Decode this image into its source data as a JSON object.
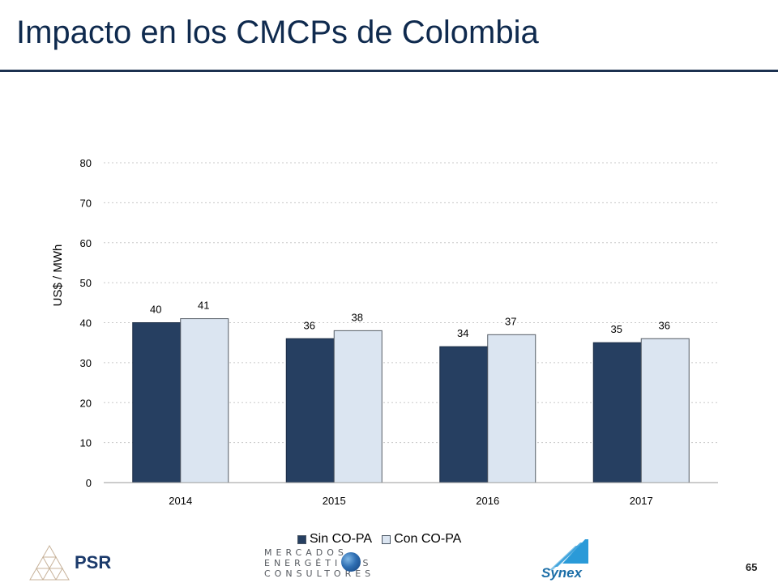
{
  "slide": {
    "title": "Impacto en los CMCPs de Colombia",
    "page_number": "65"
  },
  "chart_data": {
    "type": "bar",
    "title": "",
    "xlabel": "",
    "ylabel": "US$ / MWh",
    "ylim": [
      0,
      80
    ],
    "yticks": [
      0,
      10,
      20,
      30,
      40,
      50,
      60,
      70,
      80
    ],
    "grid": true,
    "legend_position": "bottom",
    "categories": [
      "2014",
      "2015",
      "2016",
      "2017"
    ],
    "series": [
      {
        "name": "Sin CO-PA",
        "values": [
          40,
          36,
          34,
          35
        ],
        "color": "#263f61"
      },
      {
        "name": "Con CO-PA",
        "values": [
          41,
          38,
          37,
          36
        ],
        "color": "#dbe5f1"
      }
    ]
  },
  "footer": {
    "psr_label": "PSR",
    "mec_lines": [
      "MERCADOS",
      "ENERGÉTICOS",
      "CONSULTORES"
    ],
    "synex_label": "Synex"
  }
}
